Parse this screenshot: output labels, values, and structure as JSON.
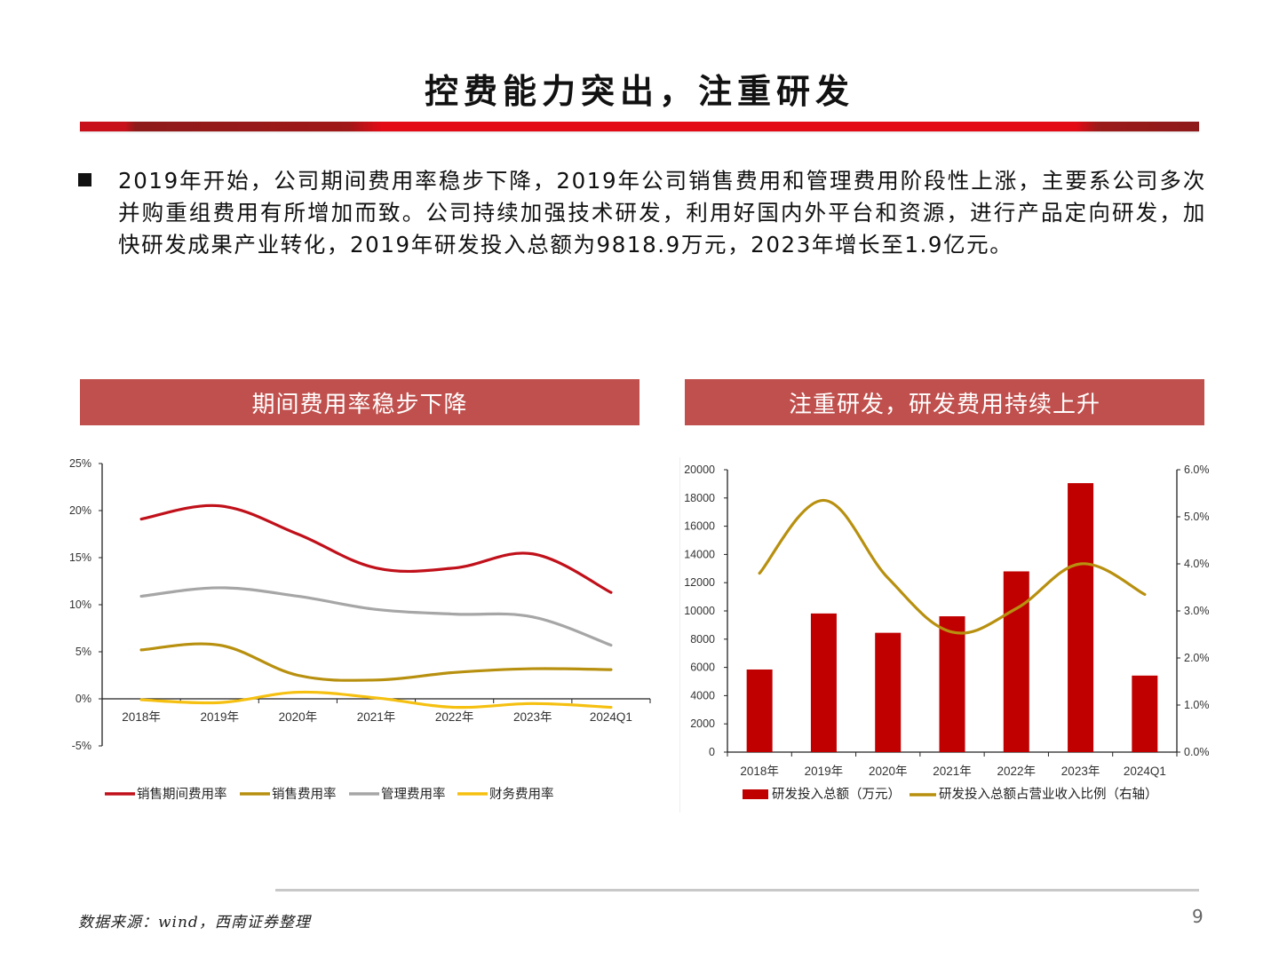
{
  "slide": {
    "title": "控费能力突出，注重研发",
    "bullet_text": "2019年开始，公司期间费用率稳步下降，2019年公司销售费用和管理费用阶段性上涨，主要系公司多次并购重组费用有所增加而致。公司持续加强技术研发，利用好国内外平台和资源，进行产品定向研发，加快研发成果产业转化，2019年研发投入总额为9818.9万元，2023年增长至1.9亿元。",
    "source": "数据来源：wind，西南证券整理",
    "page_number": "9"
  },
  "panels": {
    "left": {
      "header": "期间费用率稳步下降"
    },
    "right": {
      "header": "注重研发，研发费用持续上升"
    }
  },
  "colors": {
    "header_bg": "#c0504d",
    "bar_red": "#c00000",
    "line_red": "#c0101a",
    "line_olive": "#b8900f",
    "line_gray": "#a6a6a6",
    "line_yellow": "#f5c010",
    "title_bar": "#e30a16"
  },
  "chart_data": [
    {
      "type": "line",
      "title": "期间费用率稳步下降",
      "categories": [
        "2018年",
        "2019年",
        "2020年",
        "2021年",
        "2022年",
        "2023年",
        "2024Q1"
      ],
      "series": [
        {
          "name": "销售期间费用率",
          "color": "#c0101a",
          "values": [
            19.1,
            20.5,
            17.5,
            13.9,
            13.9,
            15.4,
            11.3
          ]
        },
        {
          "name": "销售费用率",
          "color": "#b8900f",
          "values": [
            5.2,
            5.7,
            2.5,
            2.0,
            2.8,
            3.2,
            3.1
          ]
        },
        {
          "name": "管理费用率",
          "color": "#a6a6a6",
          "values": [
            10.9,
            11.8,
            10.9,
            9.5,
            9.0,
            8.7,
            5.7
          ]
        },
        {
          "name": "财务费用率",
          "color": "#f5c010",
          "values": [
            -0.1,
            -0.4,
            0.7,
            0.1,
            -0.9,
            -0.5,
            -0.9
          ]
        }
      ],
      "yticks": [
        "25%",
        "20%",
        "15%",
        "10%",
        "5%",
        "0%",
        "-5%"
      ],
      "ylim": [
        -5,
        25
      ],
      "xlabel": "",
      "ylabel": "",
      "grid": false,
      "legend_position": "bottom"
    },
    {
      "type": "bar",
      "title": "注重研发，研发费用持续上升",
      "categories": [
        "2018年",
        "2019年",
        "2020年",
        "2021年",
        "2022年",
        "2023年",
        "2024Q1"
      ],
      "series": [
        {
          "name": "研发投入总额（万元）",
          "type": "bar",
          "axis": "left",
          "color": "#c00000",
          "values": [
            5850,
            9819,
            8450,
            9620,
            12800,
            19050,
            5420
          ]
        },
        {
          "name": "研发投入总额占营业收入比例（右轴）",
          "type": "line",
          "axis": "right",
          "color": "#b8900f",
          "values": [
            3.8,
            5.35,
            3.7,
            2.55,
            3.05,
            4.0,
            3.35
          ]
        }
      ],
      "yticks_left": [
        "20000",
        "18000",
        "16000",
        "14000",
        "12000",
        "10000",
        "8000",
        "6000",
        "4000",
        "2000",
        "0"
      ],
      "yticks_right": [
        "6.0%",
        "5.0%",
        "4.0%",
        "3.0%",
        "2.0%",
        "1.0%",
        "0.0%"
      ],
      "ylim_left": [
        0,
        20000
      ],
      "ylim_right": [
        0,
        6.0
      ],
      "xlabel": "",
      "ylabel": "",
      "grid": false,
      "legend_position": "bottom"
    }
  ]
}
